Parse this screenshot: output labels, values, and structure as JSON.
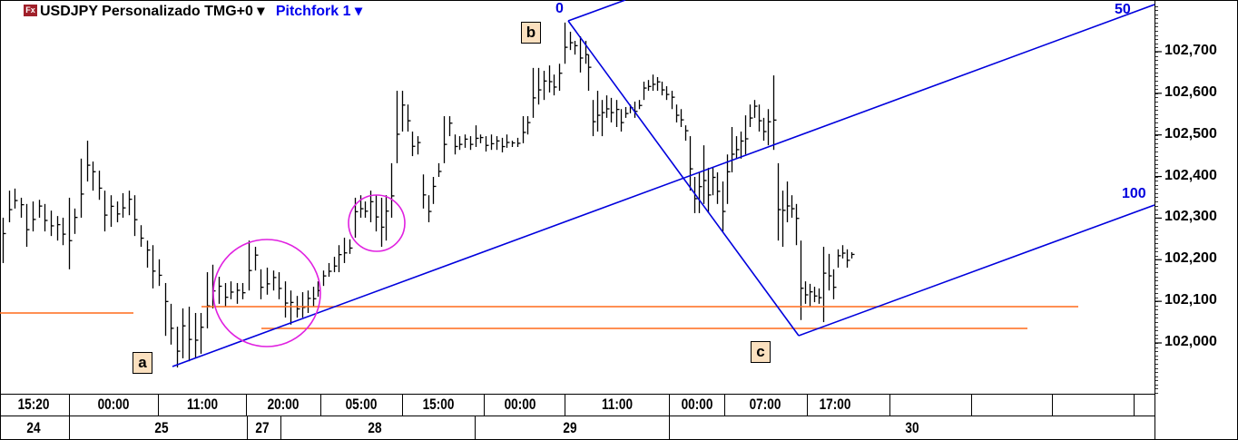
{
  "header": {
    "logo": "Fx",
    "symbol_title": "USDJPY Personalizado TMG+0",
    "study_title": "Pitchfork 1",
    "dropdown_glyph": "▾"
  },
  "annotations": {
    "wave_labels": [
      "a",
      "b",
      "c"
    ],
    "pitchfork_levels": [
      "0",
      "50",
      "100"
    ]
  },
  "colors": {
    "bars": "#000000",
    "pitchfork": "#0000dd",
    "support_lines": "#ff6a1a",
    "circles": "#e020e0",
    "wave_label_bg": "#fbe0bf"
  },
  "chart_data": {
    "type": "ohlc-bar",
    "symbol": "USDJPY",
    "y_axis": {
      "ticks": [
        "102,000",
        "102,100",
        "102,200",
        "102,300",
        "102,400",
        "102,500",
        "102,600",
        "102,700"
      ],
      "range": [
        101.875,
        102.82
      ]
    },
    "x_axis": {
      "time_labels": [
        "15:20",
        "00:00",
        "11:00",
        "20:00",
        "05:00",
        "15:00",
        "00:00",
        "11:00",
        "00:00",
        "07:00",
        "17:00"
      ],
      "date_labels": [
        "24",
        "25",
        "27",
        "28",
        "29",
        "30"
      ]
    },
    "grid": false,
    "bars_high_low": [
      [
        102.301,
        102.192
      ],
      [
        102.366,
        102.29
      ],
      [
        102.371,
        102.323
      ],
      [
        102.349,
        102.301
      ],
      [
        102.334,
        102.231
      ],
      [
        102.34,
        102.268
      ],
      [
        102.344,
        102.301
      ],
      [
        102.334,
        102.268
      ],
      [
        102.318,
        102.257
      ],
      [
        102.305,
        102.246
      ],
      [
        102.301,
        102.235
      ],
      [
        102.349,
        102.177
      ],
      [
        102.323,
        102.262
      ],
      [
        102.443,
        102.301
      ],
      [
        102.486,
        102.388
      ],
      [
        102.436,
        102.366
      ],
      [
        102.414,
        102.344
      ],
      [
        102.366,
        102.268
      ],
      [
        102.355,
        102.279
      ],
      [
        102.34,
        102.29
      ],
      [
        102.36,
        102.301
      ],
      [
        102.366,
        102.307
      ],
      [
        102.355,
        102.257
      ],
      [
        102.283,
        102.231
      ],
      [
        102.246,
        102.181
      ],
      [
        102.235,
        102.131
      ],
      [
        102.201,
        102.137
      ],
      [
        102.144,
        102.017
      ],
      [
        102.094,
        101.996
      ],
      [
        102.039,
        101.941
      ],
      [
        102.083,
        101.963
      ],
      [
        102.087,
        101.956
      ],
      [
        102.072,
        101.963
      ],
      [
        102.072,
        101.974
      ],
      [
        102.17,
        102.035
      ],
      [
        102.188,
        102.083
      ],
      [
        102.159,
        102.094
      ],
      [
        102.144,
        102.087
      ],
      [
        102.148,
        102.105
      ],
      [
        102.144,
        102.094
      ],
      [
        102.144,
        102.105
      ],
      [
        102.246,
        102.126
      ],
      [
        102.231,
        102.174
      ],
      [
        102.177,
        102.105
      ],
      [
        102.181,
        102.116
      ],
      [
        102.174,
        102.126
      ],
      [
        102.17,
        102.105
      ],
      [
        102.148,
        102.061
      ],
      [
        102.126,
        102.044
      ],
      [
        102.113,
        102.061
      ],
      [
        102.122,
        102.061
      ],
      [
        102.126,
        102.072
      ],
      [
        102.135,
        102.087
      ],
      [
        102.148,
        102.111
      ],
      [
        102.174,
        102.137
      ],
      [
        102.192,
        102.159
      ],
      [
        102.207,
        102.17
      ],
      [
        102.235,
        102.17
      ],
      [
        102.253,
        102.192
      ],
      [
        102.249,
        102.214
      ],
      [
        102.349,
        102.253
      ],
      [
        102.355,
        102.301
      ],
      [
        102.34,
        102.301
      ],
      [
        102.366,
        102.29
      ],
      [
        102.355,
        102.268
      ],
      [
        102.349,
        102.231
      ],
      [
        102.355,
        102.246
      ],
      [
        102.432,
        102.301
      ],
      [
        102.606,
        102.432
      ],
      [
        102.606,
        102.508
      ],
      [
        102.573,
        102.508
      ],
      [
        102.508,
        102.449
      ],
      [
        102.497,
        102.453
      ],
      [
        102.405,
        102.323
      ],
      [
        102.355,
        102.29
      ],
      [
        102.399,
        102.334
      ],
      [
        102.432,
        102.399
      ],
      [
        102.545,
        102.432
      ],
      [
        102.545,
        102.497
      ],
      [
        102.501,
        102.453
      ],
      [
        102.497,
        102.464
      ],
      [
        102.501,
        102.469
      ],
      [
        102.497,
        102.464
      ],
      [
        102.523,
        102.471
      ],
      [
        102.501,
        102.48
      ],
      [
        102.497,
        102.46
      ],
      [
        102.501,
        102.464
      ],
      [
        102.497,
        102.464
      ],
      [
        102.493,
        102.458
      ],
      [
        102.501,
        102.469
      ],
      [
        102.486,
        102.471
      ],
      [
        102.493,
        102.471
      ],
      [
        102.545,
        102.48
      ],
      [
        102.545,
        102.501
      ],
      [
        102.661,
        102.541
      ],
      [
        102.661,
        102.573
      ],
      [
        102.654,
        102.584
      ],
      [
        102.667,
        102.602
      ],
      [
        102.645,
        102.595
      ],
      [
        102.671,
        102.606
      ],
      [
        102.77,
        102.671
      ],
      [
        102.748,
        102.704
      ],
      [
        102.726,
        102.693
      ],
      [
        102.737,
        102.65
      ],
      [
        102.726,
        102.671
      ],
      [
        102.693,
        102.606
      ],
      [
        102.584,
        102.497
      ],
      [
        102.606,
        102.508
      ],
      [
        102.584,
        102.497
      ],
      [
        102.595,
        102.541
      ],
      [
        102.589,
        102.53
      ],
      [
        102.584,
        102.519
      ],
      [
        102.562,
        102.508
      ],
      [
        102.567,
        102.541
      ],
      [
        102.573,
        102.552
      ],
      [
        102.58,
        102.541
      ],
      [
        102.584,
        102.562
      ],
      [
        102.628,
        102.584
      ],
      [
        102.632,
        102.606
      ],
      [
        102.645,
        102.606
      ],
      [
        102.639,
        102.606
      ],
      [
        102.628,
        102.595
      ],
      [
        102.617,
        102.584
      ],
      [
        102.606,
        102.562
      ],
      [
        102.573,
        102.53
      ],
      [
        102.562,
        102.519
      ],
      [
        102.523,
        102.486
      ],
      [
        102.497,
        102.366
      ],
      [
        102.399,
        102.312
      ],
      [
        102.41,
        102.312
      ],
      [
        102.475,
        102.334
      ],
      [
        102.421,
        102.312
      ],
      [
        102.421,
        102.355
      ],
      [
        102.41,
        102.334
      ],
      [
        102.388,
        102.268
      ],
      [
        102.453,
        102.334
      ],
      [
        102.519,
        102.41
      ],
      [
        102.497,
        102.443
      ],
      [
        102.508,
        102.443
      ],
      [
        102.547,
        102.453
      ],
      [
        102.573,
        102.519
      ],
      [
        102.584,
        102.541
      ],
      [
        102.573,
        102.508
      ],
      [
        102.541,
        102.486
      ],
      [
        102.562,
        102.475
      ],
      [
        102.643,
        102.464
      ],
      [
        102.432,
        102.246
      ],
      [
        102.366,
        102.231
      ],
      [
        102.388,
        102.29
      ],
      [
        102.355,
        102.301
      ],
      [
        102.334,
        102.235
      ],
      [
        102.246,
        102.055
      ],
      [
        102.148,
        102.094
      ],
      [
        102.142,
        102.087
      ],
      [
        102.135,
        102.098
      ],
      [
        102.131,
        102.094
      ],
      [
        102.231,
        102.05
      ],
      [
        102.214,
        102.126
      ],
      [
        102.177,
        102.105
      ],
      [
        102.225,
        102.181
      ],
      [
        102.235,
        102.203
      ],
      [
        102.225,
        102.181
      ],
      [
        102.218,
        102.203
      ]
    ]
  }
}
